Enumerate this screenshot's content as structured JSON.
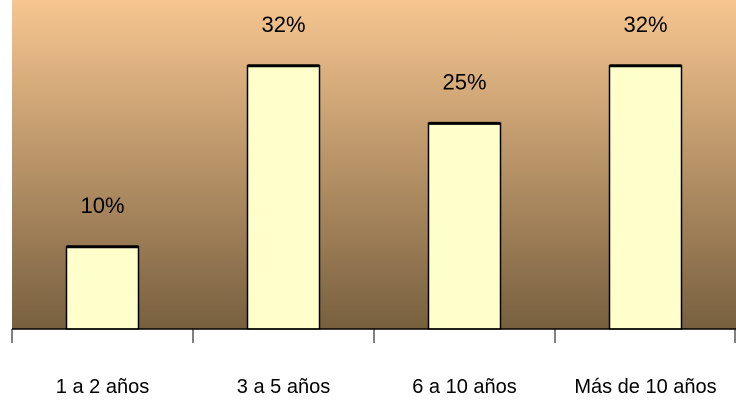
{
  "chart_data": {
    "type": "bar",
    "categories": [
      "1 a 2 años",
      "3 a 5 años",
      "6 a 10 años",
      "Más de 10 años"
    ],
    "values": [
      10,
      32,
      25,
      32
    ],
    "data_labels": [
      "10%",
      "32%",
      "25%",
      "32%"
    ],
    "title": "",
    "xlabel": "",
    "ylabel": "",
    "ylim": [
      0,
      40
    ],
    "grid": false,
    "legend": "none"
  },
  "colors": {
    "plot_gradient_top": "#f7c690",
    "plot_gradient_bottom": "#78603f",
    "bar_fill": "#ffffcc",
    "bar_stroke": "#000000"
  }
}
